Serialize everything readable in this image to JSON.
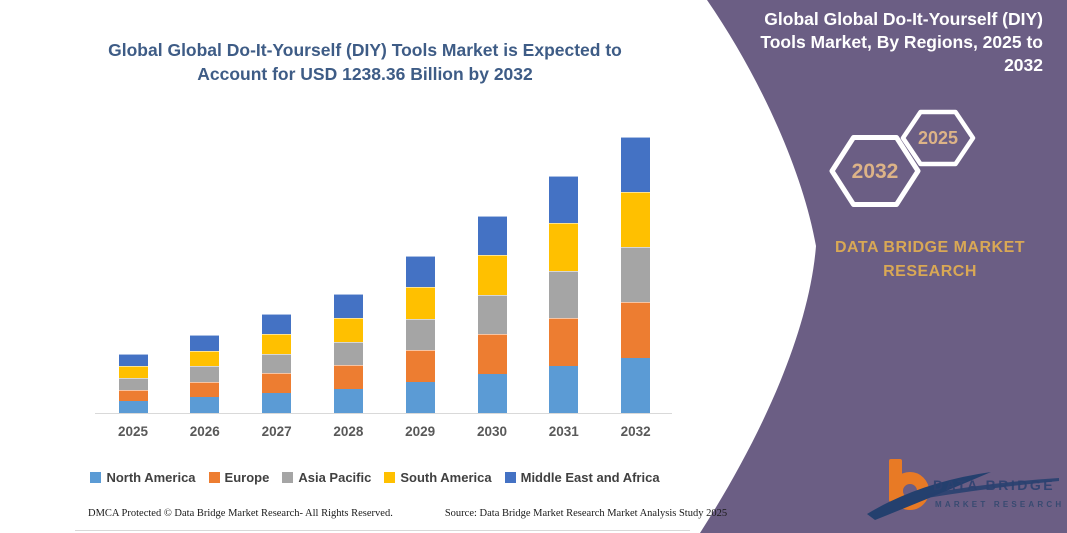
{
  "left_panel": {
    "title_line1": "Global Global Do-It-Yourself (DIY) Tools Market is Expected to",
    "title_line2": "Account for USD 1238.36 Billion by 2032"
  },
  "right_panel": {
    "title": "Global Global Do-It-Yourself (DIY) Tools Market, By Regions, 2025 to 2032",
    "hexagon_back_label": "2025",
    "hexagon_front_label": "2032",
    "brand_line1": "DATA BRIDGE MARKET",
    "brand_line2": "RESEARCH",
    "colors": {
      "panel": "#6B5E84",
      "gold_text": "#D9A855",
      "hexagon_year_text": "#DDB387",
      "hexagon_stroke": "#ffffff"
    }
  },
  "logo": {
    "line1": "DATA BRIDGE",
    "line2": "MARKET RESEARCH",
    "colors": {
      "orange": "#E87A25",
      "navy": "#24406E"
    }
  },
  "footer": {
    "dmca": "DMCA Protected © Data Bridge Market Research-  All Rights Reserved.",
    "source": "Source: Data Bridge Market Research  Market Analysis Study 2025"
  },
  "chart_data": {
    "type": "bar",
    "subtype": "stacked-vertical",
    "title": "Global Global Do-It-Yourself (DIY) Tools Market, By Regions, 2025 to 2032",
    "unit": "USD Billion",
    "categories": [
      "2025",
      "2026",
      "2027",
      "2028",
      "2029",
      "2030",
      "2031",
      "2032"
    ],
    "series": [
      {
        "name": "North America",
        "color": "#5B9BD5",
        "values": [
          52.6,
          69.9,
          88.7,
          106.6,
          140.9,
          176.5,
          212.6,
          247.67
        ]
      },
      {
        "name": "Europe",
        "color": "#ED7D31",
        "values": [
          52.6,
          69.9,
          88.7,
          106.6,
          140.9,
          176.5,
          212.6,
          247.67
        ]
      },
      {
        "name": "Asia Pacific",
        "color": "#A5A5A5",
        "values": [
          52.6,
          69.9,
          88.7,
          106.6,
          140.9,
          176.5,
          212.6,
          247.67
        ]
      },
      {
        "name": "South America",
        "color": "#FFC000",
        "values": [
          52.6,
          69.9,
          88.7,
          106.6,
          140.9,
          176.5,
          212.6,
          247.67
        ]
      },
      {
        "name": "Middle East and Africa",
        "color": "#4472C4",
        "values": [
          52.6,
          69.9,
          88.7,
          106.6,
          140.9,
          176.5,
          212.6,
          247.67
        ]
      }
    ],
    "estimated_totals": [
      263.1,
      349.4,
      443.4,
      533.1,
      704.7,
      882.4,
      1063.1,
      1238.36
    ],
    "highlight_total_2032": "USD 1238.36 Billion",
    "x_axis_labels_visible": true,
    "y_axis_visible": false,
    "gridlines": false,
    "legend_position": "bottom"
  }
}
